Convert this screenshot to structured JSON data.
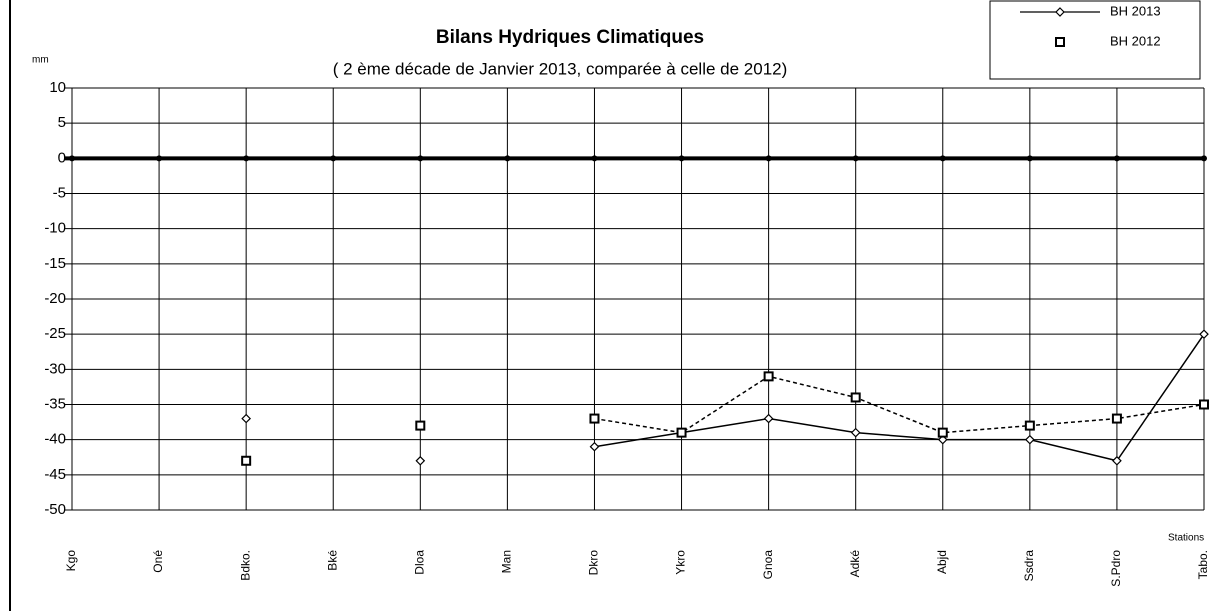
{
  "chart_data": {
    "type": "line",
    "title": "Bilans Hydriques Climatiques",
    "subtitle": "( 2 ème  décade de Janvier  2013, comparée à celle de 2012)",
    "y_label": "mm",
    "x_label": "Stations",
    "categories": [
      "Kgo",
      "Oné",
      "Bdko.",
      "Bké",
      "Dloa",
      "Man",
      "Dkro",
      "Ykro",
      "Gnoa",
      "Adké",
      "Abjd",
      "Ssdra",
      "S.Pdro",
      "Tabo."
    ],
    "series": [
      {
        "name": "BH 2013",
        "color": "#000000",
        "dash": "solid",
        "marker": "diamond",
        "values": [
          null,
          null,
          -37,
          null,
          -43,
          null,
          -41,
          -39,
          -37,
          -39,
          -40,
          -40,
          -43,
          -25
        ]
      },
      {
        "name": "BH 2012",
        "color": "#000000",
        "dash": "dashed",
        "marker": "square",
        "values": [
          null,
          null,
          -43,
          null,
          -38,
          null,
          -37,
          -39,
          -31,
          -34,
          -39,
          -38,
          -37,
          -35
        ]
      }
    ],
    "ylim": [
      -50,
      10
    ],
    "yticks": [
      10,
      5,
      0,
      -5,
      -10,
      -15,
      -20,
      -25,
      -30,
      -35,
      -40,
      -45,
      -50
    ],
    "grid": true,
    "legend": "top-right"
  }
}
